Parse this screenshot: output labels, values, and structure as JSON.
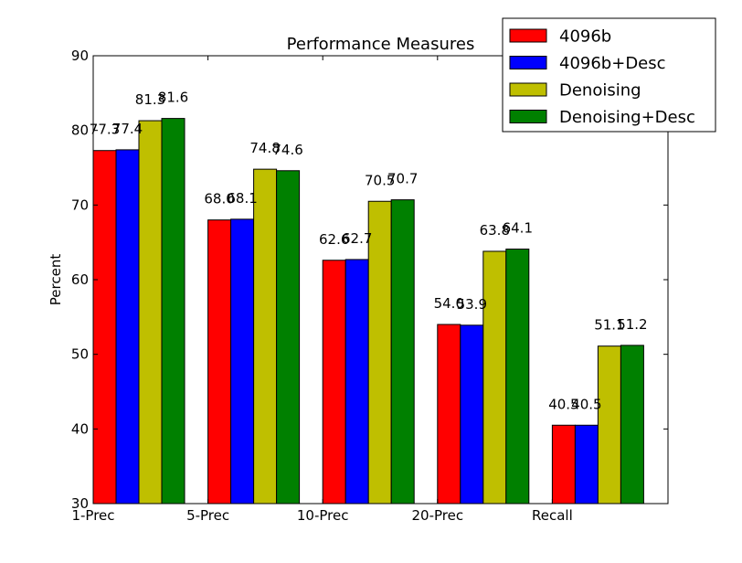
{
  "chart_data": {
    "type": "bar",
    "title": "Performance Measures",
    "xlabel": "",
    "ylabel": "Percent",
    "ylim": [
      30,
      90
    ],
    "yticks": [
      "30",
      "40",
      "50",
      "60",
      "70",
      "80",
      "90"
    ],
    "categories": [
      "1-Prec",
      "5-Prec",
      "10-Prec",
      "20-Prec",
      "Recall"
    ],
    "series": [
      {
        "name": "4096b",
        "color": "#ff0000",
        "values": [
          77.3,
          68.0,
          62.6,
          54.0,
          40.5
        ],
        "value_labels": [
          "77.3",
          "68.0",
          "62.6",
          "54.0",
          "40.5"
        ]
      },
      {
        "name": "4096b+Desc",
        "color": "#0000ff",
        "values": [
          77.4,
          68.1,
          62.7,
          53.9,
          40.5
        ],
        "value_labels": [
          "77.4",
          "68.1",
          "62.7",
          "53.9",
          "40.5"
        ]
      },
      {
        "name": "Denoising",
        "color": "#bfbf00",
        "values": [
          81.3,
          74.8,
          70.5,
          63.8,
          51.1
        ],
        "value_labels": [
          "81.3",
          "74.8",
          "70.5",
          "63.8",
          "51.1"
        ]
      },
      {
        "name": "Denoising+Desc",
        "color": "#008000",
        "values": [
          81.6,
          74.6,
          70.7,
          64.1,
          51.2
        ],
        "value_labels": [
          "81.6",
          "74.6",
          "70.7",
          "64.1",
          "51.2"
        ]
      }
    ],
    "grid": false,
    "legend_position": "top-right"
  }
}
